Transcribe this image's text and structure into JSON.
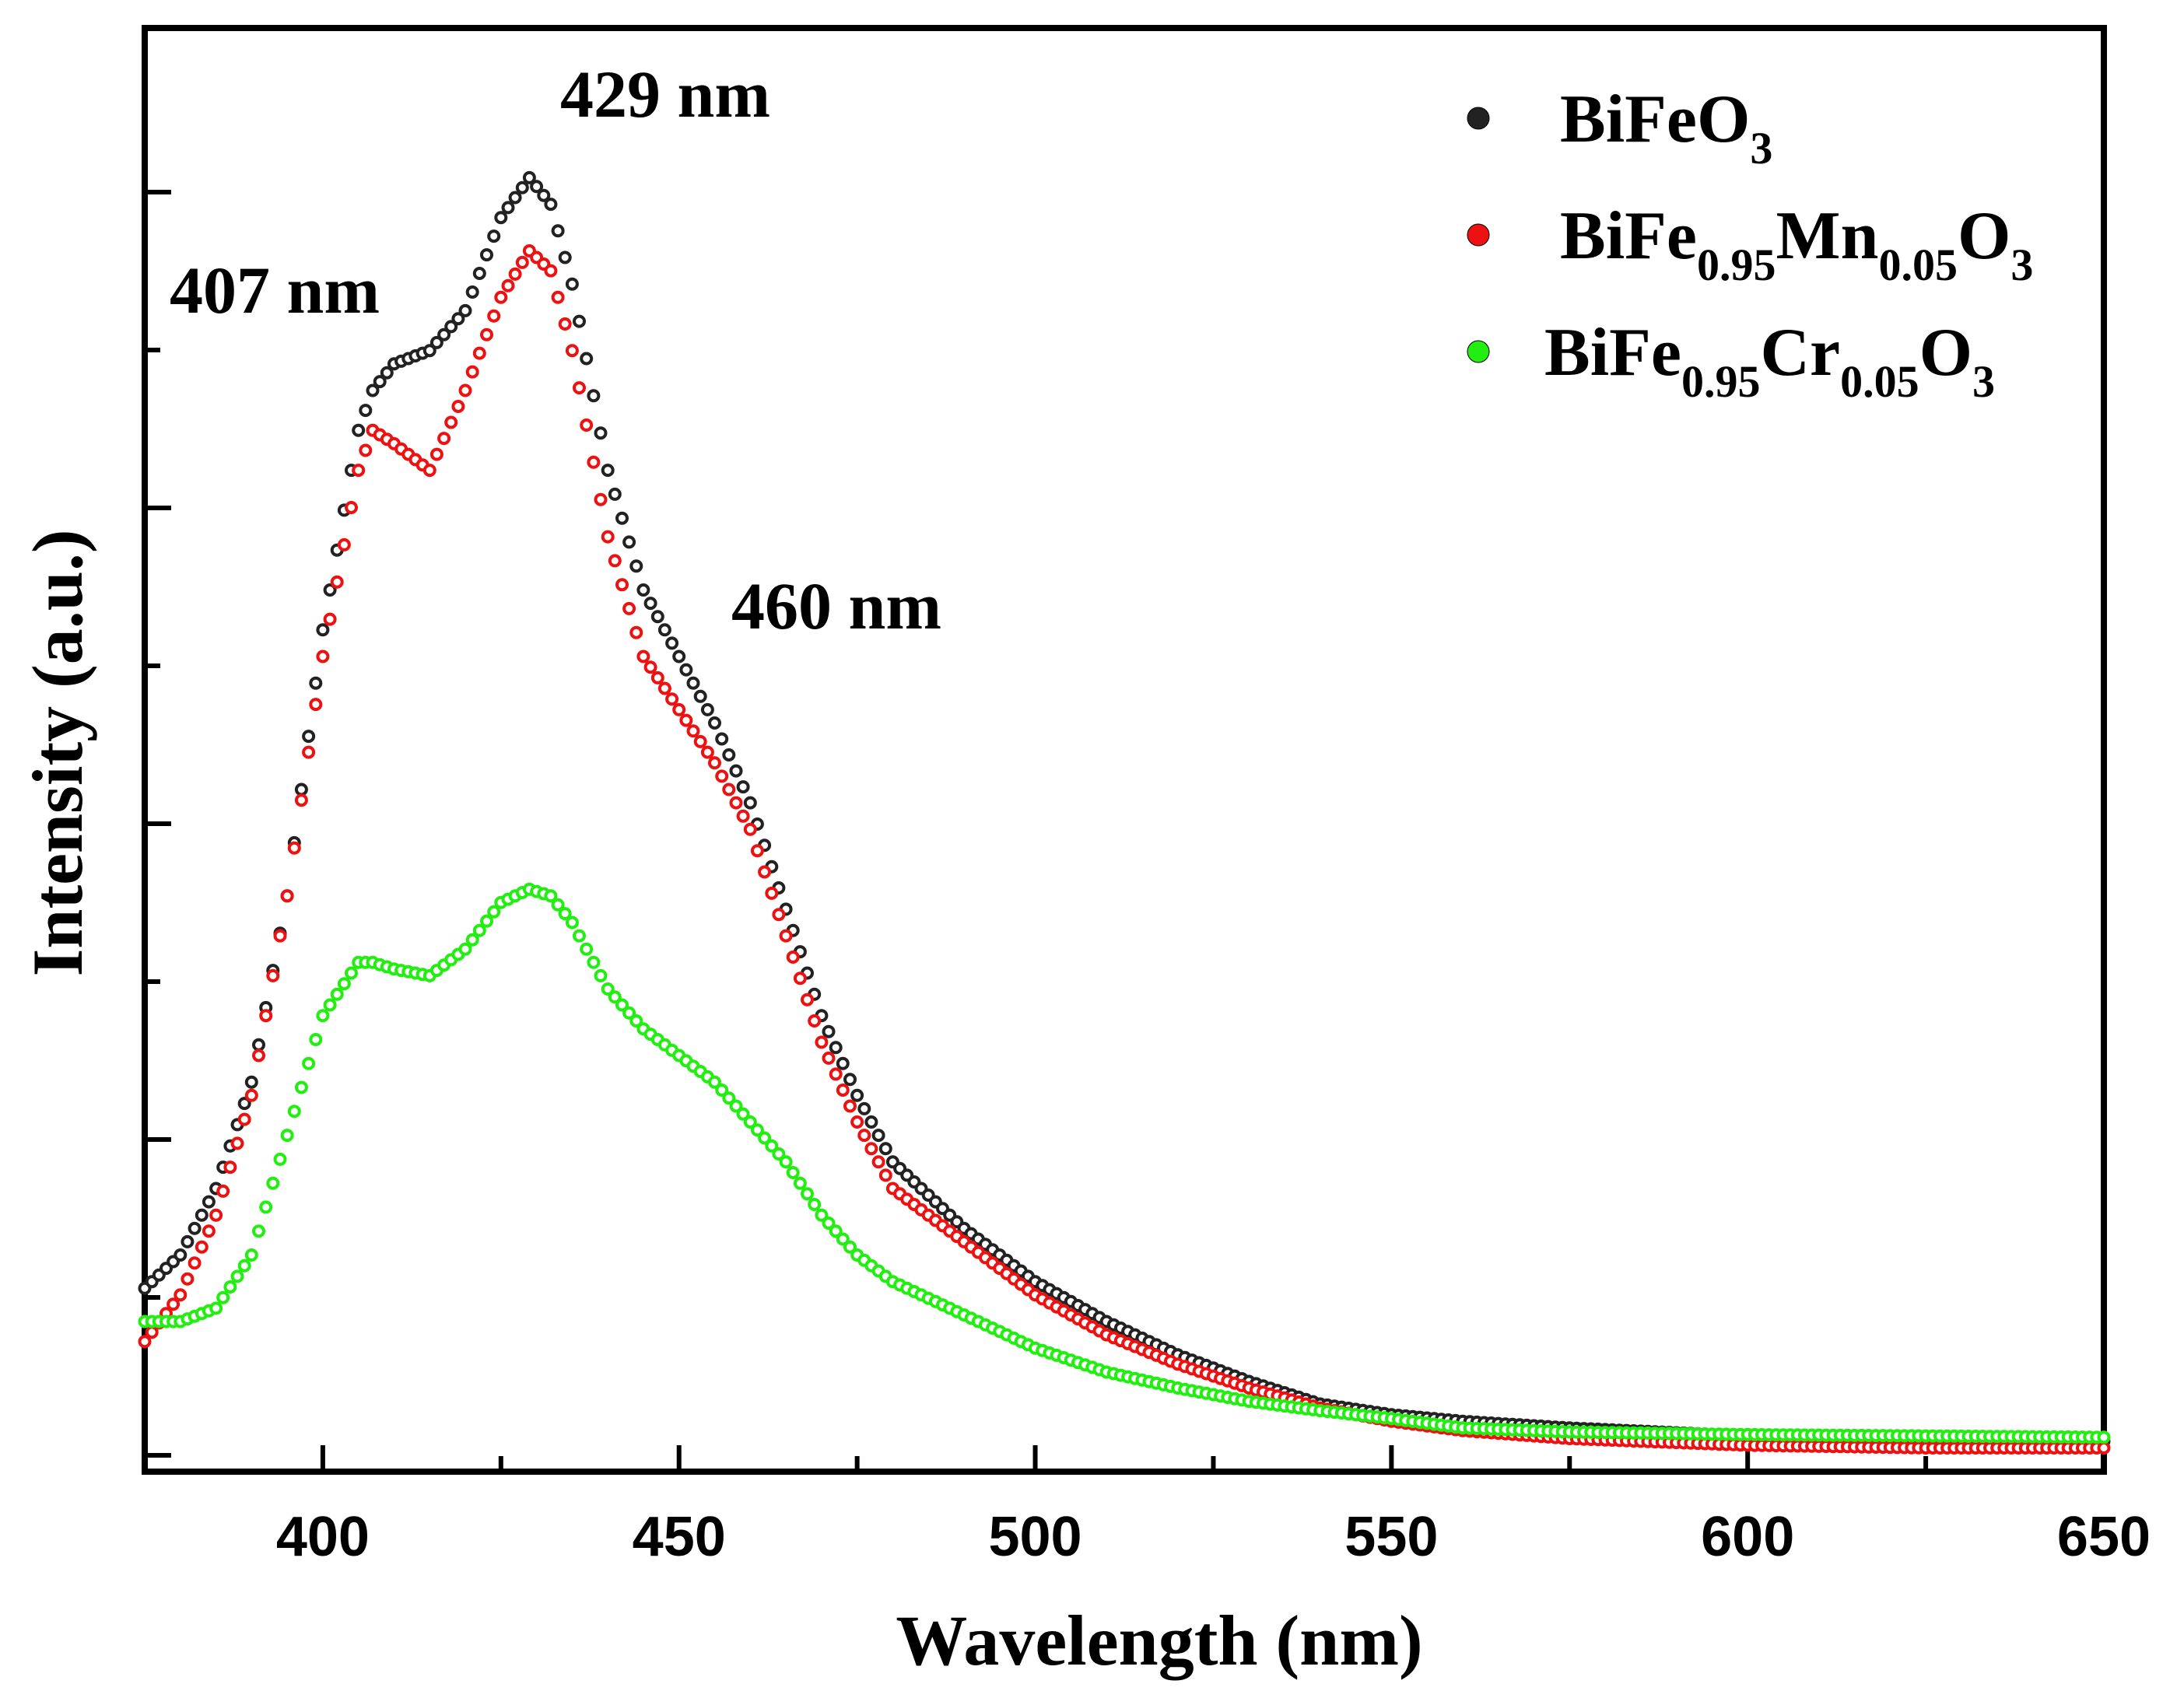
{
  "chart_data": {
    "type": "scatter",
    "title": "",
    "xlabel": "Wavelength (nm)",
    "ylabel": "Intensity (a.u.)",
    "xlim": [
      375,
      650
    ],
    "ylim": [
      0,
      1.0
    ],
    "x_ticks": [
      400,
      450,
      500,
      550,
      600,
      650
    ],
    "x_tick_labels": [
      "400",
      "450",
      "500",
      "550",
      "600",
      "650"
    ],
    "y_tick_labels_shown": false,
    "grid": false,
    "legend_position": "top-right",
    "annotations": [
      {
        "text": "407 nm",
        "x": 407
      },
      {
        "text": "429 nm",
        "x": 429
      },
      {
        "text": "460 nm",
        "x": 460
      }
    ],
    "series": [
      {
        "name": "BiFeO3",
        "legend_parts": [
          {
            "t": "BiFeO",
            "s": false
          },
          {
            "t": "3",
            "s": true
          }
        ],
        "color": "#222222",
        "x": [
          375,
          380,
          385,
          390,
          395,
          400,
          405,
          407,
          410,
          415,
          420,
          425,
          429,
          432,
          435,
          440,
          445,
          450,
          455,
          460,
          465,
          470,
          475,
          480,
          490,
          500,
          510,
          520,
          530,
          540,
          550,
          560,
          575,
          600,
          625,
          650
        ],
        "y": [
          0.125,
          0.15,
          0.2,
          0.28,
          0.42,
          0.62,
          0.77,
          0.8,
          0.82,
          0.83,
          0.86,
          0.93,
          0.96,
          0.94,
          0.88,
          0.74,
          0.65,
          0.6,
          0.55,
          0.49,
          0.41,
          0.33,
          0.27,
          0.22,
          0.17,
          0.13,
          0.1,
          0.075,
          0.055,
          0.038,
          0.03,
          0.025,
          0.02,
          0.014,
          0.011,
          0.01
        ]
      },
      {
        "name": "BiFe0.95Mn0.05O3",
        "legend_parts": [
          {
            "t": "BiFe",
            "s": false
          },
          {
            "t": "0.95",
            "s": true
          },
          {
            "t": "Mn",
            "s": false
          },
          {
            "t": "0.05",
            "s": true
          },
          {
            "t": "O",
            "s": false
          },
          {
            "t": "3",
            "s": true
          }
        ],
        "color": "#ee1111",
        "x": [
          375,
          380,
          385,
          390,
          395,
          400,
          405,
          407,
          410,
          415,
          420,
          425,
          429,
          432,
          435,
          440,
          445,
          450,
          455,
          460,
          465,
          470,
          475,
          480,
          490,
          500,
          510,
          520,
          530,
          540,
          550,
          560,
          575,
          600,
          625,
          650
        ],
        "y": [
          0.085,
          0.12,
          0.18,
          0.27,
          0.42,
          0.6,
          0.74,
          0.77,
          0.76,
          0.74,
          0.8,
          0.87,
          0.905,
          0.89,
          0.83,
          0.69,
          0.6,
          0.56,
          0.52,
          0.47,
          0.39,
          0.31,
          0.25,
          0.2,
          0.16,
          0.12,
          0.09,
          0.068,
          0.05,
          0.035,
          0.025,
          0.018,
          0.012,
          0.007,
          0.005,
          0.005
        ]
      },
      {
        "name": "BiFe0.95Cr0.05O3",
        "legend_parts": [
          {
            "t": "BiFe",
            "s": false
          },
          {
            "t": "0.95",
            "s": true
          },
          {
            "t": "Cr",
            "s": false
          },
          {
            "t": "0.05",
            "s": true
          },
          {
            "t": "O",
            "s": false
          },
          {
            "t": "3",
            "s": true
          }
        ],
        "color": "#22ee11",
        "x": [
          375,
          380,
          385,
          390,
          395,
          400,
          405,
          407,
          410,
          415,
          420,
          425,
          429,
          432,
          435,
          440,
          445,
          450,
          455,
          460,
          465,
          470,
          475,
          480,
          490,
          500,
          510,
          520,
          530,
          540,
          550,
          560,
          575,
          600,
          625,
          650
        ],
        "y": [
          0.1,
          0.1,
          0.11,
          0.15,
          0.24,
          0.33,
          0.37,
          0.37,
          0.365,
          0.36,
          0.38,
          0.415,
          0.425,
          0.42,
          0.4,
          0.35,
          0.32,
          0.3,
          0.28,
          0.25,
          0.22,
          0.18,
          0.15,
          0.13,
          0.105,
          0.08,
          0.062,
          0.05,
          0.04,
          0.033,
          0.027,
          0.02,
          0.017,
          0.015,
          0.014,
          0.013
        ]
      }
    ]
  }
}
